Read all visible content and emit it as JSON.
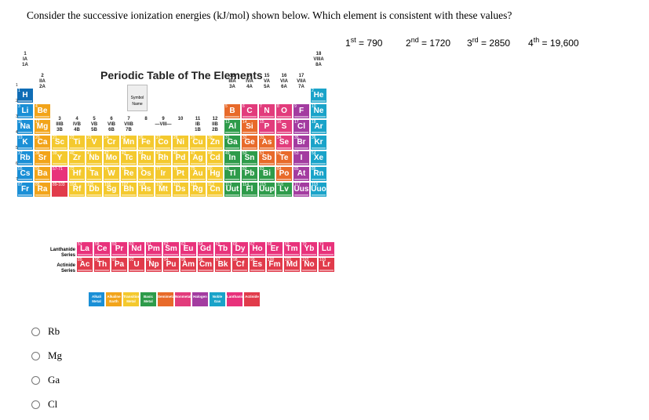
{
  "question": "Consider the successive ionization energies (kJ/mol) shown below. Which element is consistent with these values?",
  "ionization": [
    {
      "ord": "1",
      "sup": "st",
      "value": "= 790"
    },
    {
      "ord": "2",
      "sup": "nd",
      "value": "= 1720"
    },
    {
      "ord": "3",
      "sup": "rd",
      "value": "= 2850"
    },
    {
      "ord": "4",
      "sup": "th",
      "value": "= 19,600"
    }
  ],
  "table": {
    "title": "Periodic Table of The Elements",
    "legend_symbol": "Symbol",
    "legend_name": "Name",
    "lanthanide_label": "Lanthanide Series",
    "actinide_label": "Actinide Series",
    "range_lan": "57-71",
    "range_act": "89-103",
    "colors": {
      "alkali": "#1a8fd6",
      "alkaline": "#f2a41a",
      "transition": "#f4c92e",
      "basic": "#2e9b4a",
      "semimetal": "#e86a2a",
      "nonmetal": "#e23c7c",
      "halogen": "#a33ca0",
      "noble": "#1aa3c9",
      "lanthanide": "#e8327b",
      "actinide": "#e13b4b",
      "hydrogen": "#0f6db6",
      "unknown": "#2b66d9"
    },
    "groups": [
      "1 IA 1A",
      "18 VIIIA 8A",
      "2 IIA 2A",
      "13 IIIA 3A",
      "14 IVA 4A",
      "15 VA 5A",
      "16 VIA 6A",
      "17 VIIA 7A",
      "3 IIIB 3B",
      "4 IVB 4B",
      "5 VB 5B",
      "6 VIB 6B",
      "7 VIIB 7B",
      "8",
      "9 —VIII—",
      "10",
      "11 IB 1B",
      "12 IIB 2B"
    ],
    "elements": [
      {
        "n": "1",
        "s": "H",
        "r": 1,
        "c": 1,
        "k": "hydrogen"
      },
      {
        "n": "2",
        "s": "He",
        "r": 1,
        "c": 18,
        "k": "noble"
      },
      {
        "n": "3",
        "s": "Li",
        "r": 2,
        "c": 1,
        "k": "alkali"
      },
      {
        "n": "4",
        "s": "Be",
        "r": 2,
        "c": 2,
        "k": "alkaline"
      },
      {
        "n": "5",
        "s": "B",
        "r": 2,
        "c": 13,
        "k": "semimetal"
      },
      {
        "n": "6",
        "s": "C",
        "r": 2,
        "c": 14,
        "k": "nonmetal"
      },
      {
        "n": "7",
        "s": "N",
        "r": 2,
        "c": 15,
        "k": "nonmetal"
      },
      {
        "n": "8",
        "s": "O",
        "r": 2,
        "c": 16,
        "k": "nonmetal"
      },
      {
        "n": "9",
        "s": "F",
        "r": 2,
        "c": 17,
        "k": "halogen"
      },
      {
        "n": "10",
        "s": "Ne",
        "r": 2,
        "c": 18,
        "k": "noble"
      },
      {
        "n": "11",
        "s": "Na",
        "r": 3,
        "c": 1,
        "k": "alkali"
      },
      {
        "n": "12",
        "s": "Mg",
        "r": 3,
        "c": 2,
        "k": "alkaline"
      },
      {
        "n": "13",
        "s": "Al",
        "r": 3,
        "c": 13,
        "k": "basic"
      },
      {
        "n": "14",
        "s": "Si",
        "r": 3,
        "c": 14,
        "k": "semimetal"
      },
      {
        "n": "15",
        "s": "P",
        "r": 3,
        "c": 15,
        "k": "nonmetal"
      },
      {
        "n": "16",
        "s": "S",
        "r": 3,
        "c": 16,
        "k": "nonmetal"
      },
      {
        "n": "17",
        "s": "Cl",
        "r": 3,
        "c": 17,
        "k": "halogen"
      },
      {
        "n": "18",
        "s": "Ar",
        "r": 3,
        "c": 18,
        "k": "noble"
      },
      {
        "n": "19",
        "s": "K",
        "r": 4,
        "c": 1,
        "k": "alkali"
      },
      {
        "n": "20",
        "s": "Ca",
        "r": 4,
        "c": 2,
        "k": "alkaline"
      },
      {
        "n": "21",
        "s": "Sc",
        "r": 4,
        "c": 3,
        "k": "transition"
      },
      {
        "n": "22",
        "s": "Ti",
        "r": 4,
        "c": 4,
        "k": "transition"
      },
      {
        "n": "23",
        "s": "V",
        "r": 4,
        "c": 5,
        "k": "transition"
      },
      {
        "n": "24",
        "s": "Cr",
        "r": 4,
        "c": 6,
        "k": "transition"
      },
      {
        "n": "25",
        "s": "Mn",
        "r": 4,
        "c": 7,
        "k": "transition"
      },
      {
        "n": "26",
        "s": "Fe",
        "r": 4,
        "c": 8,
        "k": "transition"
      },
      {
        "n": "27",
        "s": "Co",
        "r": 4,
        "c": 9,
        "k": "transition"
      },
      {
        "n": "28",
        "s": "Ni",
        "r": 4,
        "c": 10,
        "k": "transition"
      },
      {
        "n": "29",
        "s": "Cu",
        "r": 4,
        "c": 11,
        "k": "transition"
      },
      {
        "n": "30",
        "s": "Zn",
        "r": 4,
        "c": 12,
        "k": "transition"
      },
      {
        "n": "31",
        "s": "Ga",
        "r": 4,
        "c": 13,
        "k": "basic"
      },
      {
        "n": "32",
        "s": "Ge",
        "r": 4,
        "c": 14,
        "k": "semimetal"
      },
      {
        "n": "33",
        "s": "As",
        "r": 4,
        "c": 15,
        "k": "semimetal"
      },
      {
        "n": "34",
        "s": "Se",
        "r": 4,
        "c": 16,
        "k": "nonmetal"
      },
      {
        "n": "35",
        "s": "Br",
        "r": 4,
        "c": 17,
        "k": "halogen"
      },
      {
        "n": "36",
        "s": "Kr",
        "r": 4,
        "c": 18,
        "k": "noble"
      },
      {
        "n": "37",
        "s": "Rb",
        "r": 5,
        "c": 1,
        "k": "alkali"
      },
      {
        "n": "38",
        "s": "Sr",
        "r": 5,
        "c": 2,
        "k": "alkaline"
      },
      {
        "n": "39",
        "s": "Y",
        "r": 5,
        "c": 3,
        "k": "transition"
      },
      {
        "n": "40",
        "s": "Zr",
        "r": 5,
        "c": 4,
        "k": "transition"
      },
      {
        "n": "41",
        "s": "Nb",
        "r": 5,
        "c": 5,
        "k": "transition"
      },
      {
        "n": "42",
        "s": "Mo",
        "r": 5,
        "c": 6,
        "k": "transition"
      },
      {
        "n": "43",
        "s": "Tc",
        "r": 5,
        "c": 7,
        "k": "transition"
      },
      {
        "n": "44",
        "s": "Ru",
        "r": 5,
        "c": 8,
        "k": "transition"
      },
      {
        "n": "45",
        "s": "Rh",
        "r": 5,
        "c": 9,
        "k": "transition"
      },
      {
        "n": "46",
        "s": "Pd",
        "r": 5,
        "c": 10,
        "k": "transition"
      },
      {
        "n": "47",
        "s": "Ag",
        "r": 5,
        "c": 11,
        "k": "transition"
      },
      {
        "n": "48",
        "s": "Cd",
        "r": 5,
        "c": 12,
        "k": "transition"
      },
      {
        "n": "49",
        "s": "In",
        "r": 5,
        "c": 13,
        "k": "basic"
      },
      {
        "n": "50",
        "s": "Sn",
        "r": 5,
        "c": 14,
        "k": "basic"
      },
      {
        "n": "51",
        "s": "Sb",
        "r": 5,
        "c": 15,
        "k": "semimetal"
      },
      {
        "n": "52",
        "s": "Te",
        "r": 5,
        "c": 16,
        "k": "semimetal"
      },
      {
        "n": "53",
        "s": "I",
        "r": 5,
        "c": 17,
        "k": "halogen"
      },
      {
        "n": "54",
        "s": "Xe",
        "r": 5,
        "c": 18,
        "k": "noble"
      },
      {
        "n": "55",
        "s": "Cs",
        "r": 6,
        "c": 1,
        "k": "alkali"
      },
      {
        "n": "56",
        "s": "Ba",
        "r": 6,
        "c": 2,
        "k": "alkaline"
      },
      {
        "n": "72",
        "s": "Hf",
        "r": 6,
        "c": 4,
        "k": "transition"
      },
      {
        "n": "73",
        "s": "Ta",
        "r": 6,
        "c": 5,
        "k": "transition"
      },
      {
        "n": "74",
        "s": "W",
        "r": 6,
        "c": 6,
        "k": "transition"
      },
      {
        "n": "75",
        "s": "Re",
        "r": 6,
        "c": 7,
        "k": "transition"
      },
      {
        "n": "76",
        "s": "Os",
        "r": 6,
        "c": 8,
        "k": "transition"
      },
      {
        "n": "77",
        "s": "Ir",
        "r": 6,
        "c": 9,
        "k": "transition"
      },
      {
        "n": "78",
        "s": "Pt",
        "r": 6,
        "c": 10,
        "k": "transition"
      },
      {
        "n": "79",
        "s": "Au",
        "r": 6,
        "c": 11,
        "k": "transition"
      },
      {
        "n": "80",
        "s": "Hg",
        "r": 6,
        "c": 12,
        "k": "transition"
      },
      {
        "n": "81",
        "s": "Tl",
        "r": 6,
        "c": 13,
        "k": "basic"
      },
      {
        "n": "82",
        "s": "Pb",
        "r": 6,
        "c": 14,
        "k": "basic"
      },
      {
        "n": "83",
        "s": "Bi",
        "r": 6,
        "c": 15,
        "k": "basic"
      },
      {
        "n": "84",
        "s": "Po",
        "r": 6,
        "c": 16,
        "k": "semimetal"
      },
      {
        "n": "85",
        "s": "At",
        "r": 6,
        "c": 17,
        "k": "halogen"
      },
      {
        "n": "86",
        "s": "Rn",
        "r": 6,
        "c": 18,
        "k": "noble"
      },
      {
        "n": "87",
        "s": "Fr",
        "r": 7,
        "c": 1,
        "k": "alkali"
      },
      {
        "n": "88",
        "s": "Ra",
        "r": 7,
        "c": 2,
        "k": "alkaline"
      },
      {
        "n": "104",
        "s": "Rf",
        "r": 7,
        "c": 4,
        "k": "transition"
      },
      {
        "n": "105",
        "s": "Db",
        "r": 7,
        "c": 5,
        "k": "transition"
      },
      {
        "n": "106",
        "s": "Sg",
        "r": 7,
        "c": 6,
        "k": "transition"
      },
      {
        "n": "107",
        "s": "Bh",
        "r": 7,
        "c": 7,
        "k": "transition"
      },
      {
        "n": "108",
        "s": "Hs",
        "r": 7,
        "c": 8,
        "k": "transition"
      },
      {
        "n": "109",
        "s": "Mt",
        "r": 7,
        "c": 9,
        "k": "transition"
      },
      {
        "n": "110",
        "s": "Ds",
        "r": 7,
        "c": 10,
        "k": "transition"
      },
      {
        "n": "111",
        "s": "Rg",
        "r": 7,
        "c": 11,
        "k": "transition"
      },
      {
        "n": "112",
        "s": "Cn",
        "r": 7,
        "c": 12,
        "k": "transition"
      },
      {
        "n": "113",
        "s": "Uut",
        "r": 7,
        "c": 13,
        "k": "basic"
      },
      {
        "n": "114",
        "s": "Fl",
        "r": 7,
        "c": 14,
        "k": "basic"
      },
      {
        "n": "115",
        "s": "Uup",
        "r": 7,
        "c": 15,
        "k": "basic"
      },
      {
        "n": "116",
        "s": "Lv",
        "r": 7,
        "c": 16,
        "k": "basic"
      },
      {
        "n": "117",
        "s": "Uus",
        "r": 7,
        "c": 17,
        "k": "halogen"
      },
      {
        "n": "118",
        "s": "Uuo",
        "r": 7,
        "c": 18,
        "k": "noble"
      }
    ],
    "lanthanides": [
      {
        "n": "57",
        "s": "La"
      },
      {
        "n": "58",
        "s": "Ce"
      },
      {
        "n": "59",
        "s": "Pr"
      },
      {
        "n": "60",
        "s": "Nd"
      },
      {
        "n": "61",
        "s": "Pm"
      },
      {
        "n": "62",
        "s": "Sm"
      },
      {
        "n": "63",
        "s": "Eu"
      },
      {
        "n": "64",
        "s": "Gd"
      },
      {
        "n": "65",
        "s": "Tb"
      },
      {
        "n": "66",
        "s": "Dy"
      },
      {
        "n": "67",
        "s": "Ho"
      },
      {
        "n": "68",
        "s": "Er"
      },
      {
        "n": "69",
        "s": "Tm"
      },
      {
        "n": "70",
        "s": "Yb"
      },
      {
        "n": "71",
        "s": "Lu"
      }
    ],
    "actinides": [
      {
        "n": "89",
        "s": "Ac"
      },
      {
        "n": "90",
        "s": "Th"
      },
      {
        "n": "91",
        "s": "Pa"
      },
      {
        "n": "92",
        "s": "U"
      },
      {
        "n": "93",
        "s": "Np"
      },
      {
        "n": "94",
        "s": "Pu"
      },
      {
        "n": "95",
        "s": "Am"
      },
      {
        "n": "96",
        "s": "Cm"
      },
      {
        "n": "97",
        "s": "Bk"
      },
      {
        "n": "98",
        "s": "Cf"
      },
      {
        "n": "99",
        "s": "Es"
      },
      {
        "n": "100",
        "s": "Fm"
      },
      {
        "n": "101",
        "s": "Md"
      },
      {
        "n": "102",
        "s": "No"
      },
      {
        "n": "103",
        "s": "Lr"
      }
    ],
    "legend": [
      {
        "label": "Alkali Metal",
        "k": "alkali"
      },
      {
        "label": "Alkaline Earth",
        "k": "alkaline"
      },
      {
        "label": "Transition Metal",
        "k": "transition"
      },
      {
        "label": "Basic Metal",
        "k": "basic"
      },
      {
        "label": "Semimetal",
        "k": "semimetal"
      },
      {
        "label": "Nonmetal",
        "k": "nonmetal"
      },
      {
        "label": "Halogen",
        "k": "halogen"
      },
      {
        "label": "Noble Gas",
        "k": "noble"
      },
      {
        "label": "Lanthanide",
        "k": "lanthanide"
      },
      {
        "label": "Actinide",
        "k": "actinide"
      }
    ]
  },
  "options": [
    "Rb",
    "Mg",
    "Ga",
    "Cl"
  ]
}
